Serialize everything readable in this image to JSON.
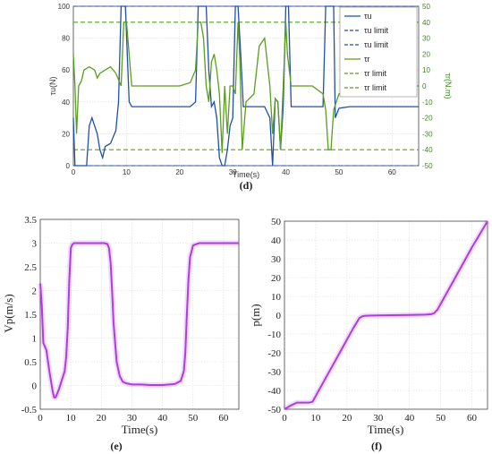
{
  "chart_data": [
    {
      "id": "d",
      "type": "line",
      "panel_label": "(d)",
      "xlabel": "Time(s)",
      "ylabel_left": "τu(N)",
      "ylabel_right": "τr(N.m)",
      "xlim": [
        0,
        65
      ],
      "ylim_left": [
        0,
        100
      ],
      "ylim_right": [
        -50,
        50
      ],
      "xticks": [
        0,
        10,
        20,
        30,
        40,
        50,
        60
      ],
      "yticks_left": [
        0,
        20,
        40,
        60,
        80,
        100
      ],
      "yticks_right": [
        -50,
        -40,
        -30,
        -20,
        -10,
        0,
        10,
        20,
        30,
        40,
        50
      ],
      "grid": true,
      "legend_position": "top-right",
      "legend": [
        "τu",
        "τu limit",
        "τu limit",
        "τr",
        "τr limit",
        "τr limit"
      ],
      "colors": {
        "tau_u": "#1f4fa8",
        "tau_r": "#5a9e1e",
        "tau_u_limit": "#1f4fa8",
        "tau_r_limit": "#5a9e1e"
      },
      "series": [
        {
          "name": "τu",
          "axis": "left",
          "x": [
            0,
            0.3,
            0.6,
            1,
            2.5,
            3,
            3.5,
            4.5,
            5,
            5.5,
            6,
            7,
            8,
            8.5,
            9,
            9.3,
            9.8,
            10.5,
            11,
            12,
            15,
            20,
            22,
            23,
            23.5,
            25,
            25.5,
            26,
            26.5,
            27,
            27.5,
            28,
            28.5,
            29,
            29.5,
            30,
            30.5,
            31,
            31.5,
            32,
            34,
            36,
            37,
            37.5,
            38,
            38.5,
            39,
            39.5,
            40,
            40.5,
            41,
            45,
            47,
            47.5,
            48,
            49,
            49.3,
            50,
            52,
            60,
            65
          ],
          "y": [
            30,
            0,
            0,
            0,
            0,
            25,
            30,
            20,
            10,
            5,
            12,
            14,
            22,
            40,
            100,
            100,
            100,
            40,
            37,
            37,
            37,
            37,
            37,
            40,
            100,
            100,
            60,
            37,
            40,
            30,
            5,
            0,
            0,
            10,
            25,
            30,
            100,
            100,
            70,
            37,
            37,
            37,
            30,
            0,
            42,
            40,
            10,
            37,
            100,
            100,
            37,
            37,
            37,
            100,
            100,
            100,
            30,
            36,
            37,
            37,
            37
          ]
        },
        {
          "name": "τr",
          "axis": "right",
          "x": [
            0,
            0.3,
            0.6,
            1,
            1.5,
            2,
            3,
            4,
            4.5,
            5,
            6,
            7,
            8,
            9,
            9.5,
            10,
            11,
            12,
            15,
            20,
            22,
            23,
            23.5,
            24,
            24.5,
            25,
            25.5,
            26,
            26.5,
            27,
            27.5,
            28,
            28.5,
            29,
            29.5,
            30,
            30.5,
            31,
            31.3,
            31.8,
            32.5,
            34,
            35,
            36,
            37,
            37.5,
            38,
            38.5,
            39,
            39.5,
            40,
            40.3,
            41,
            42,
            45,
            47,
            47.5,
            48,
            48.5,
            49,
            50,
            52,
            60,
            65
          ],
          "y": [
            20,
            0,
            -30,
            0,
            3,
            10,
            12,
            10,
            5,
            8,
            10,
            12,
            8,
            0,
            40,
            40,
            0,
            0,
            0,
            0,
            2,
            10,
            40,
            40,
            30,
            0,
            -10,
            15,
            20,
            10,
            -5,
            -42,
            0,
            -30,
            0,
            0,
            -5,
            40,
            20,
            -40,
            -10,
            -5,
            25,
            30,
            0,
            -30,
            -8,
            -10,
            -40,
            0,
            40,
            20,
            0,
            0,
            0,
            -5,
            -15,
            -40,
            -40,
            -15,
            -5,
            -2,
            0,
            0
          ]
        },
        {
          "name": "τu limit",
          "axis": "left",
          "x": [
            0,
            65
          ],
          "y": [
            100,
            100
          ]
        },
        {
          "name": "τu limit",
          "axis": "left",
          "x": [
            0,
            65
          ],
          "y": [
            0,
            0
          ]
        },
        {
          "name": "τr limit",
          "axis": "right",
          "x": [
            0,
            65
          ],
          "y": [
            40,
            40
          ]
        },
        {
          "name": "τr limit",
          "axis": "right",
          "x": [
            0,
            65
          ],
          "y": [
            -40,
            -40
          ]
        }
      ]
    },
    {
      "id": "e",
      "type": "line",
      "panel_label": "(e)",
      "xlabel": "Time(s)",
      "ylabel": "Vp(m/s)",
      "xlim": [
        0,
        65
      ],
      "ylim": [
        -0.5,
        3.5
      ],
      "xticks": [
        0,
        10,
        20,
        30,
        40,
        50,
        60
      ],
      "yticks": [
        -0.5,
        0,
        0.5,
        1,
        1.5,
        2,
        2.5,
        3,
        3.5
      ],
      "grid": true,
      "colors": {
        "line": "#b03be0"
      },
      "series": [
        {
          "x": [
            0,
            0.5,
            1,
            2,
            3,
            4,
            4.5,
            5,
            6,
            7,
            8,
            8.5,
            9,
            9.5,
            10,
            10.5,
            11,
            12,
            14,
            18,
            21,
            22,
            22.5,
            23,
            23.5,
            24,
            25,
            26,
            27,
            28,
            30,
            33,
            36,
            40,
            44,
            46,
            47,
            47.5,
            48,
            48.5,
            49,
            50,
            52,
            55,
            60,
            65
          ],
          "y": [
            2.15,
            1.7,
            0.9,
            0.75,
            0.3,
            -0.1,
            -0.25,
            -0.25,
            -0.1,
            0.1,
            0.3,
            0.6,
            1.2,
            2.2,
            2.9,
            2.97,
            3.0,
            3.0,
            3.0,
            3.0,
            3.0,
            2.98,
            2.9,
            2.6,
            2.0,
            1.3,
            0.5,
            0.2,
            0.08,
            0.05,
            0.02,
            0.02,
            0.01,
            0.01,
            0.03,
            0.1,
            0.3,
            0.7,
            1.5,
            2.2,
            2.7,
            2.95,
            3.0,
            3.0,
            3.0,
            3.0
          ]
        }
      ]
    },
    {
      "id": "f",
      "type": "line",
      "panel_label": "(f)",
      "xlabel": "Time(s)",
      "ylabel": "p(m)",
      "xlim": [
        0,
        65
      ],
      "ylim": [
        -50,
        50
      ],
      "xticks": [
        0,
        10,
        20,
        30,
        40,
        50,
        60
      ],
      "yticks": [
        -50,
        -40,
        -30,
        -20,
        -10,
        0,
        10,
        20,
        30,
        40,
        50
      ],
      "grid": true,
      "colors": {
        "line": "#b03be0"
      },
      "series": [
        {
          "x": [
            0,
            2,
            4,
            6,
            8,
            9,
            10,
            12,
            15,
            18,
            20,
            22,
            24,
            25,
            26,
            28,
            30,
            35,
            40,
            45,
            47,
            48,
            49,
            50,
            55,
            60,
            65
          ],
          "y": [
            -50,
            -48,
            -46.5,
            -46.5,
            -46.5,
            -46,
            -43,
            -37,
            -28,
            -19,
            -13,
            -7,
            -1.5,
            -0.5,
            -0.3,
            -0.2,
            -0.1,
            0,
            0.1,
            0.3,
            0.5,
            1.2,
            3,
            6,
            21,
            36,
            50
          ]
        }
      ]
    }
  ]
}
